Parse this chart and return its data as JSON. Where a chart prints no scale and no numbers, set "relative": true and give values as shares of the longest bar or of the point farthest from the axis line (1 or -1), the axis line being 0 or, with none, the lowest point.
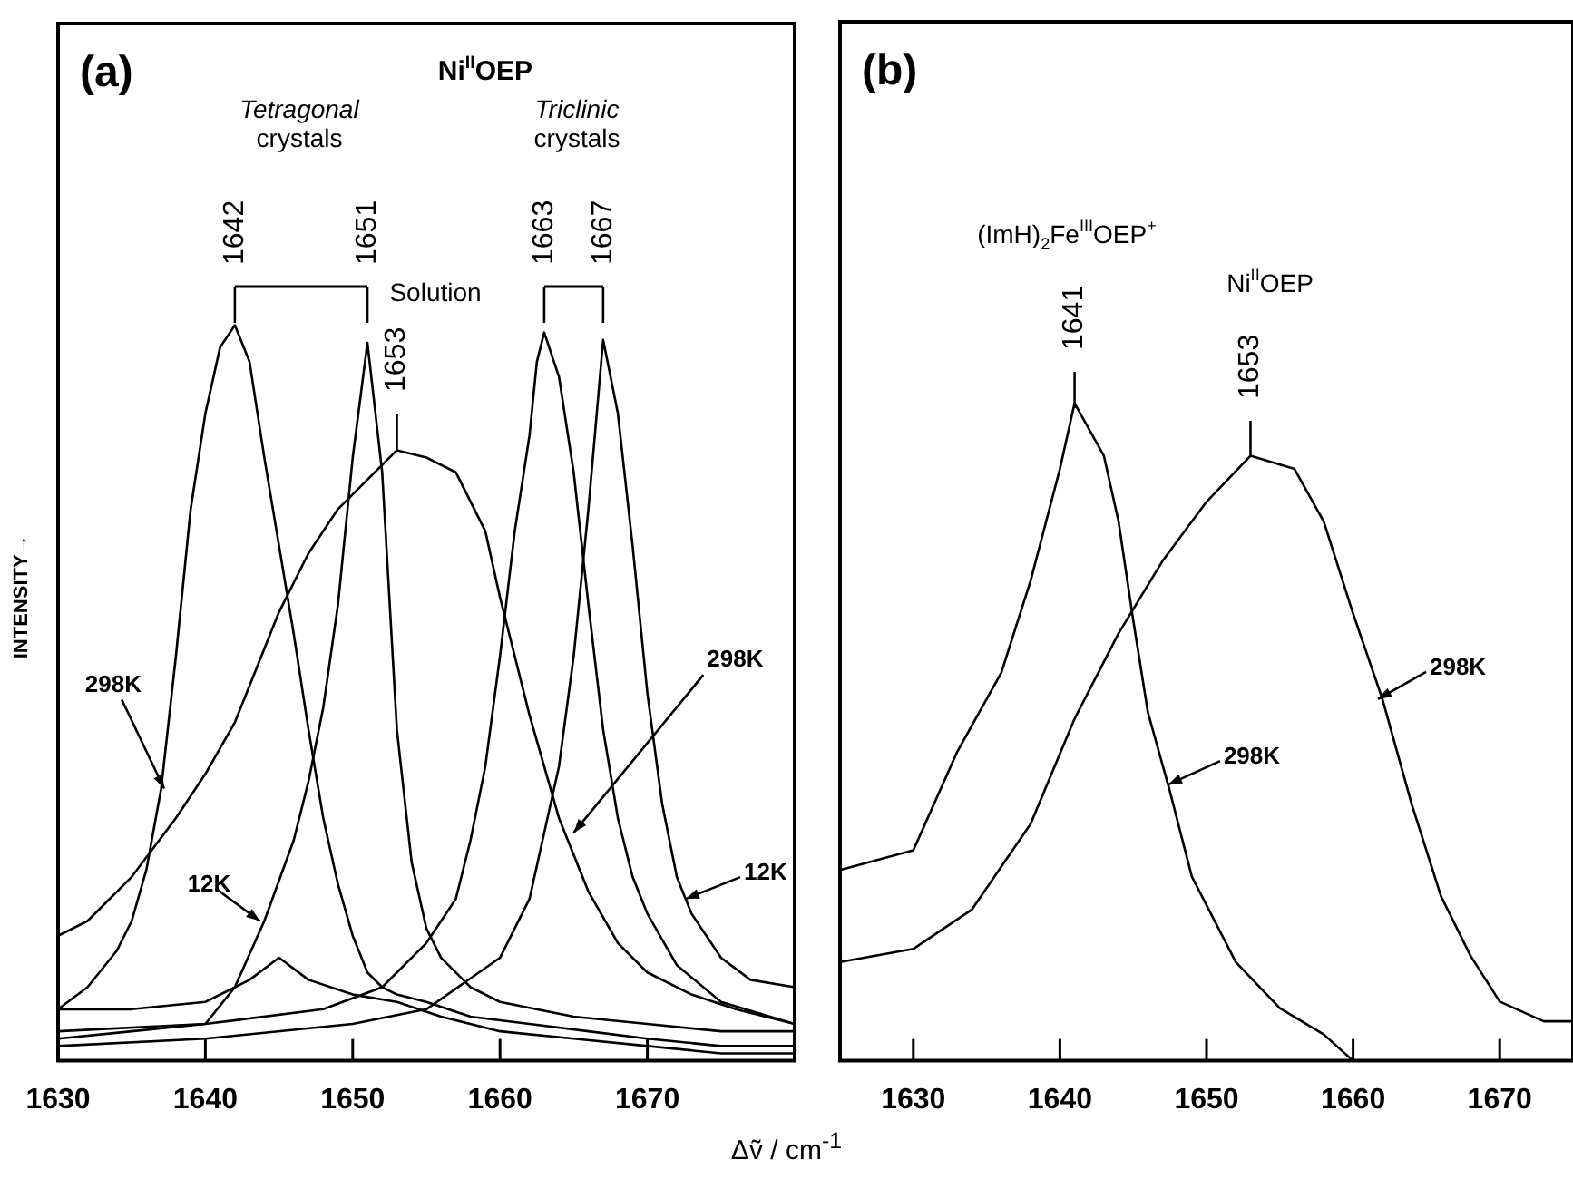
{
  "chart_data": [
    {
      "type": "line",
      "title": "Ni$^{II}$OEP",
      "xlabel": "Δṽ / cm$^{-1}$",
      "ylabel": "INTENSITY→",
      "relative": true,
      "marker": "none",
      "xlim": [
        1630,
        1680
      ],
      "xticks": [
        1630,
        1640,
        1650,
        1660,
        1670
      ],
      "annotations": [
        "(a)",
        "Tetragonal crystals",
        "Triclinic crystals",
        {
          "text": "1642",
          "x": 1642,
          "y": 1.0
        },
        {
          "text": "1651",
          "x": 1651,
          "y": 0.976
        },
        "Solution",
        {
          "text": "1653",
          "x": 1653,
          "y": 0.83
        },
        {
          "text": "1663",
          "x": 1663,
          "y": 0.99
        },
        {
          "text": "1667",
          "x": 1667,
          "y": 0.98
        },
        {
          "text": "298K",
          "x": 1637.2,
          "y": 0.37
        },
        {
          "text": "12K",
          "x": 1643.7,
          "y": 0.19
        },
        {
          "text": "298K",
          "x": 1665,
          "y": 0.31
        },
        {
          "text": "12K",
          "x": 1672.6,
          "y": 0.22
        }
      ],
      "series": [
        {
          "color": "#000000",
          "x": [
            1630,
            1632,
            1634,
            1635,
            1636,
            1637,
            1638,
            1639,
            1640,
            1641,
            1642,
            1643,
            1644,
            1645,
            1646,
            1647,
            1648,
            1649,
            1650,
            1651,
            1652,
            1653,
            1655,
            1658,
            1662,
            1666,
            1670,
            1675,
            1680
          ],
          "values": [
            0.07,
            0.1,
            0.15,
            0.19,
            0.26,
            0.37,
            0.55,
            0.75,
            0.88,
            0.97,
            1.0,
            0.95,
            0.82,
            0.7,
            0.58,
            0.45,
            0.33,
            0.24,
            0.17,
            0.12,
            0.1,
            0.09,
            0.08,
            0.06,
            0.05,
            0.04,
            0.03,
            0.02,
            0.02
          ]
        },
        {
          "color": "#000000",
          "x": [
            1630,
            1635,
            1640,
            1642,
            1644,
            1646,
            1647,
            1648,
            1649,
            1650,
            1651,
            1652,
            1653,
            1654,
            1655,
            1656,
            1658,
            1660,
            1665,
            1670,
            1675,
            1680
          ],
          "values": [
            0.03,
            0.04,
            0.05,
            0.1,
            0.19,
            0.3,
            0.38,
            0.48,
            0.62,
            0.82,
            0.976,
            0.8,
            0.45,
            0.27,
            0.18,
            0.14,
            0.1,
            0.08,
            0.06,
            0.05,
            0.04,
            0.04
          ]
        },
        {
          "color": "#000000",
          "x": [
            1630,
            1632,
            1635,
            1638,
            1640,
            1642,
            1645,
            1647,
            1649,
            1651,
            1653,
            1655,
            1657,
            1659,
            1660,
            1662,
            1664,
            1666,
            1668,
            1670,
            1673,
            1676,
            1680
          ],
          "values": [
            0.17,
            0.19,
            0.25,
            0.33,
            0.39,
            0.46,
            0.61,
            0.69,
            0.75,
            0.79,
            0.83,
            0.82,
            0.8,
            0.72,
            0.63,
            0.47,
            0.33,
            0.23,
            0.16,
            0.12,
            0.09,
            0.07,
            0.05
          ]
        },
        {
          "color": "#000000",
          "x": [
            1630,
            1640,
            1648,
            1652,
            1655,
            1657,
            1658,
            1659,
            1660,
            1661,
            1662,
            1662.5,
            1663,
            1664,
            1665,
            1666,
            1667,
            1668,
            1669,
            1670,
            1672,
            1675,
            1680
          ],
          "values": [
            0.04,
            0.05,
            0.07,
            0.1,
            0.16,
            0.22,
            0.3,
            0.4,
            0.55,
            0.72,
            0.85,
            0.95,
            0.99,
            0.93,
            0.8,
            0.62,
            0.45,
            0.33,
            0.25,
            0.2,
            0.13,
            0.08,
            0.05
          ]
        },
        {
          "color": "#000000",
          "x": [
            1630,
            1640,
            1650,
            1655,
            1660,
            1662,
            1664,
            1665,
            1666,
            1667,
            1668,
            1669,
            1670,
            1671,
            1672,
            1672.6,
            1673,
            1675,
            1677,
            1680
          ],
          "values": [
            0.02,
            0.03,
            0.05,
            0.07,
            0.14,
            0.22,
            0.4,
            0.55,
            0.75,
            0.98,
            0.88,
            0.7,
            0.5,
            0.35,
            0.25,
            0.22,
            0.2,
            0.14,
            0.11,
            0.1
          ]
        },
        {
          "color": "#000000",
          "x": [
            1630,
            1635,
            1640,
            1643,
            1645,
            1647,
            1650,
            1653,
            1656,
            1660,
            1665,
            1670,
            1675,
            1680
          ],
          "values": [
            0.07,
            0.07,
            0.08,
            0.11,
            0.14,
            0.11,
            0.09,
            0.08,
            0.06,
            0.04,
            0.03,
            0.02,
            0.01,
            0.01
          ]
        }
      ]
    },
    {
      "type": "line",
      "relative": true,
      "marker": "none",
      "xlim": [
        1625,
        1675
      ],
      "xticks": [
        1630,
        1640,
        1650,
        1660,
        1670
      ],
      "annotations": [
        "(b)",
        "(ImH)$_{2}$Fe$^{III}$OEP$^{+}$",
        "Ni$^{II}$OEP",
        {
          "text": "1641",
          "x": 1641,
          "y": 1.0
        },
        {
          "text": "1653",
          "x": 1653,
          "y": 0.92
        },
        {
          "text": "298K",
          "x": 1647.4,
          "y": 0.42
        },
        {
          "text": "298K",
          "x": 1661.7,
          "y": 0.55
        }
      ],
      "series": [
        {
          "color": "#000000",
          "x": [
            1625,
            1630,
            1633,
            1636,
            1638,
            1640,
            1641,
            1643,
            1644,
            1645,
            1646,
            1647.5,
            1649,
            1652,
            1655,
            1658,
            1660
          ],
          "values": [
            0.29,
            0.32,
            0.47,
            0.59,
            0.73,
            0.9,
            1.0,
            0.92,
            0.82,
            0.67,
            0.53,
            0.41,
            0.28,
            0.15,
            0.08,
            0.04,
            0.0
          ]
        },
        {
          "color": "#000000",
          "x": [
            1625,
            1630,
            1634,
            1638,
            1641,
            1644,
            1647,
            1650,
            1653,
            1656,
            1658,
            1660,
            1662,
            1664,
            1666,
            1668,
            1670,
            1673,
            1675
          ],
          "values": [
            0.15,
            0.17,
            0.23,
            0.36,
            0.52,
            0.65,
            0.76,
            0.85,
            0.92,
            0.9,
            0.82,
            0.68,
            0.55,
            0.39,
            0.25,
            0.16,
            0.09,
            0.06,
            0.06
          ]
        }
      ]
    }
  ]
}
